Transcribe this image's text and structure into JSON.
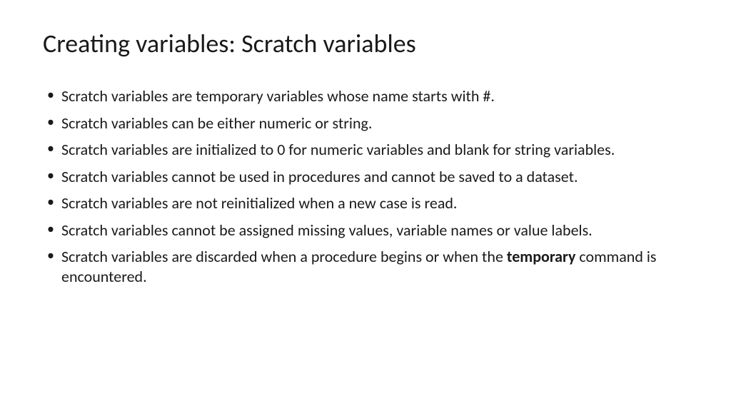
{
  "slide": {
    "title": "Creating variables: Scratch variables",
    "bullets": [
      {
        "plain": "Scratch variables are temporary variables whose name starts with #."
      },
      {
        "plain": "Scratch variables can be either numeric or string."
      },
      {
        "plain": "Scratch variables are initialized to 0 for numeric variables and blank for string variables."
      },
      {
        "plain": "Scratch variables cannot be used in procedures and cannot be saved to a dataset."
      },
      {
        "plain": "Scratch variables are not reinitialized when a new case is read."
      },
      {
        "plain": "Scratch variables cannot be assigned missing values, variable names or value labels."
      },
      {
        "pre": "Scratch variables are discarded when a procedure begins or when the ",
        "bold": "temporary",
        "post": " command is encountered."
      }
    ],
    "style": {
      "background_color": "#ffffff",
      "text_color": "#1a1a1a",
      "title_fontsize": 36,
      "body_fontsize": 22,
      "font_family": "Calibri",
      "bullet_char": "•"
    }
  }
}
